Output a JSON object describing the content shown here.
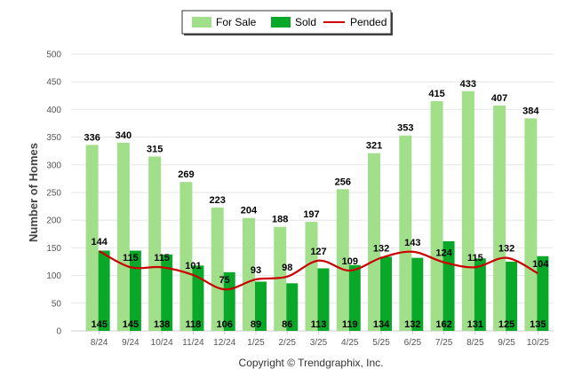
{
  "chart_data": {
    "type": "bar",
    "title": "",
    "xlabel": "",
    "ylabel": "Number of Homes",
    "ylim": [
      0,
      500
    ],
    "yticks": [
      0,
      50,
      100,
      150,
      200,
      250,
      300,
      350,
      400,
      450,
      500
    ],
    "grid": true,
    "legend_position": "top-center",
    "categories": [
      "8/24",
      "9/24",
      "10/24",
      "11/24",
      "12/24",
      "1/25",
      "2/25",
      "3/25",
      "4/25",
      "5/25",
      "6/25",
      "7/25",
      "8/25",
      "9/25",
      "10/25"
    ],
    "series": [
      {
        "name": "For Sale",
        "type": "bar",
        "color": "#a2df8a",
        "values": [
          336,
          340,
          315,
          269,
          223,
          204,
          188,
          197,
          256,
          321,
          353,
          415,
          433,
          407,
          384
        ]
      },
      {
        "name": "Sold",
        "type": "bar",
        "color": "#0aa829",
        "values": [
          145,
          145,
          138,
          118,
          106,
          89,
          86,
          113,
          119,
          134,
          132,
          162,
          131,
          125,
          135
        ]
      },
      {
        "name": "Pended",
        "type": "line",
        "color": "#cc0000",
        "values": [
          144,
          115,
          115,
          101,
          75,
          93,
          98,
          127,
          109,
          132,
          143,
          124,
          115,
          132,
          104
        ]
      }
    ]
  },
  "footer": {
    "copyright": "Copyright © Trendgraphix, Inc."
  }
}
